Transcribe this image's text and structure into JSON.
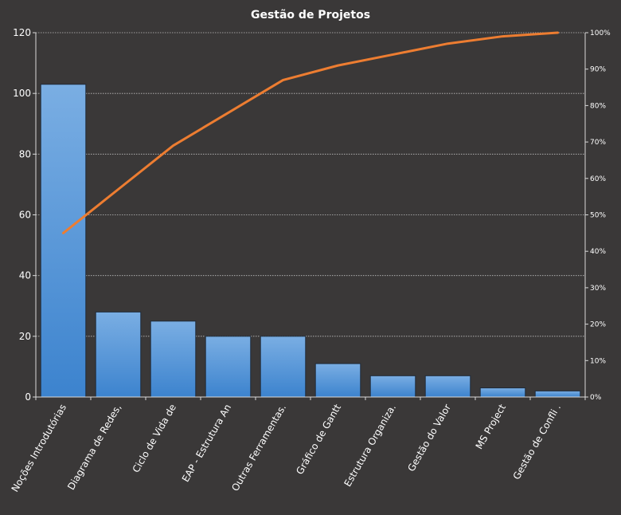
{
  "chart_data": {
    "type": "bar",
    "title": "Gestão de Projetos",
    "categories": [
      "Noções Introdutórias",
      "Diagrama de Redes,",
      "Ciclo de Vida de",
      "EAP - Estrutura An",
      "Outras Ferramentas.",
      "Gráfico de Gantt",
      "Estrutura Organiza.",
      "Gestão do Valor",
      "MS Project",
      "Gestão de Confli ."
    ],
    "values": [
      103,
      28,
      25,
      20,
      20,
      11,
      7,
      7,
      3,
      2
    ],
    "cumulative_percent": [
      45,
      57,
      69,
      78,
      87,
      91,
      94,
      97,
      99,
      100
    ],
    "ylim": [
      0,
      120
    ],
    "y_ticks": [
      0,
      20,
      40,
      60,
      80,
      100,
      120
    ],
    "y2lim": [
      0,
      100
    ],
    "y2_ticks": [
      "0%",
      "10%",
      "20%",
      "30%",
      "40%",
      "50%",
      "60%",
      "70%",
      "80%",
      "90%",
      "100%"
    ],
    "grid": true,
    "legend": "none",
    "colors": {
      "background": "#3a3838",
      "bar_top": "#7aaee3",
      "bar_bottom": "#3c83ce",
      "bar_border": "#1f2a38",
      "line": "#ed7d31",
      "grid": "#bfbfbf",
      "text": "#ffffff"
    }
  }
}
